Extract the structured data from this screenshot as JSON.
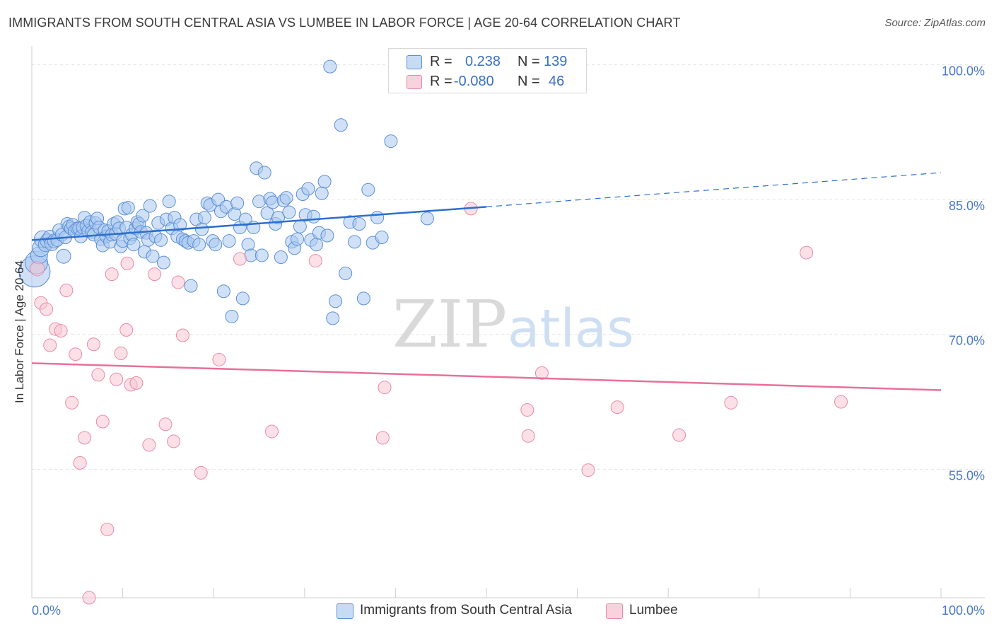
{
  "title": "IMMIGRANTS FROM SOUTH CENTRAL ASIA VS LUMBEE IN LABOR FORCE | AGE 20-64 CORRELATION CHART",
  "source": "Source: ZipAtlas.com",
  "watermark": {
    "zip": "ZIP",
    "atlas": "atlas"
  },
  "legend_top": {
    "rows": [
      {
        "r_label": "R =",
        "r_value": "0.238",
        "n_label": "N =",
        "n_value": "139",
        "color": "#a9c8f0"
      },
      {
        "r_label": "R =",
        "r_value": "-0.080",
        "n_label": "N =",
        "n_value": "46",
        "color": "#f5b8cb"
      }
    ]
  },
  "legend_bottom": {
    "items": [
      {
        "label": "Immigrants from South Central Asia",
        "color": "#a9c8f0"
      },
      {
        "label": "Lumbee",
        "color": "#f5b8cb"
      }
    ]
  },
  "chart_data": {
    "type": "scatter",
    "ylabel": "In Labor Force | Age 20-64",
    "xlim": [
      0,
      100
    ],
    "ylim": [
      40.7,
      101.7
    ],
    "x_tick_labels": [
      "0.0%",
      "100.0%"
    ],
    "y_ticks": [
      55,
      70,
      85,
      100
    ],
    "y_tick_labels": [
      "55.0%",
      "70.0%",
      "85.0%",
      "100.0%"
    ],
    "grid": true,
    "colors": {
      "blue_fill": "#a9c8f0",
      "blue_stroke": "#5b8fd6",
      "blue_line": "#2b6fcf",
      "pink_fill": "#f8c6d4",
      "pink_stroke": "#e88aa7",
      "pink_line": "#e8709a",
      "tick_text": "#4a78c9"
    },
    "series": [
      {
        "name": "Immigrants from South Central Asia",
        "trend": {
          "x0": 0,
          "y0": 80.5,
          "x1": 50,
          "y1": 84.2,
          "dash_to": 100,
          "dash_y": 88.0
        },
        "points": [
          [
            0.3,
            77.0,
            22
          ],
          [
            0.5,
            78.0,
            16
          ],
          [
            0.8,
            78.8,
            12
          ],
          [
            1.0,
            79.6,
            12
          ],
          [
            1.2,
            80.6,
            12
          ],
          [
            1.5,
            80.0,
            10
          ],
          [
            1.7,
            80.4,
            10
          ],
          [
            2.0,
            80.8,
            10
          ],
          [
            2.2,
            80.1,
            10
          ],
          [
            2.5,
            80.4,
            10
          ],
          [
            2.8,
            80.5,
            9
          ],
          [
            3.0,
            81.6,
            9
          ],
          [
            3.3,
            81.1,
            9
          ],
          [
            3.5,
            78.7,
            10
          ],
          [
            3.7,
            80.8,
            9
          ],
          [
            3.9,
            82.3,
            9
          ],
          [
            4.1,
            82.0,
            9
          ],
          [
            4.3,
            81.8,
            9
          ],
          [
            4.5,
            82.2,
            9
          ],
          [
            4.7,
            81.5,
            9
          ],
          [
            5.0,
            81.8,
            9
          ],
          [
            5.2,
            81.8,
            9
          ],
          [
            5.4,
            80.9,
            9
          ],
          [
            5.6,
            81.9,
            9
          ],
          [
            5.8,
            83.0,
            9
          ],
          [
            6.0,
            82.1,
            9
          ],
          [
            6.2,
            81.5,
            9
          ],
          [
            6.4,
            82.5,
            9
          ],
          [
            6.6,
            81.4,
            9
          ],
          [
            6.8,
            81.1,
            9
          ],
          [
            7.0,
            82.4,
            9
          ],
          [
            7.2,
            82.9,
            9
          ],
          [
            7.4,
            81.9,
            9
          ],
          [
            7.6,
            80.6,
            9
          ],
          [
            7.8,
            79.9,
            9
          ],
          [
            8.0,
            81.6,
            9
          ],
          [
            8.2,
            80.9,
            9
          ],
          [
            8.4,
            81.5,
            9
          ],
          [
            8.6,
            80.3,
            9
          ],
          [
            8.8,
            81.1,
            9
          ],
          [
            9.0,
            82.3,
            9
          ],
          [
            9.2,
            81.2,
            9
          ],
          [
            9.4,
            82.5,
            9
          ],
          [
            9.6,
            81.8,
            9
          ],
          [
            9.8,
            79.8,
            9
          ],
          [
            10.0,
            80.4,
            9
          ],
          [
            10.2,
            84.0,
            9
          ],
          [
            10.4,
            81.9,
            9
          ],
          [
            10.6,
            84.1,
            9
          ],
          [
            10.8,
            80.7,
            9
          ],
          [
            11.0,
            81.1,
            9
          ],
          [
            11.2,
            80.0,
            9
          ],
          [
            11.4,
            81.8,
            9
          ],
          [
            11.6,
            82.5,
            9
          ],
          [
            11.8,
            82.3,
            9
          ],
          [
            12.0,
            81.4,
            9
          ],
          [
            12.2,
            83.2,
            9
          ],
          [
            12.4,
            79.2,
            9
          ],
          [
            12.6,
            81.3,
            9
          ],
          [
            12.8,
            80.5,
            9
          ],
          [
            13.0,
            84.3,
            9
          ],
          [
            13.3,
            78.7,
            9
          ],
          [
            13.6,
            80.9,
            9
          ],
          [
            13.9,
            82.4,
            9
          ],
          [
            14.2,
            80.5,
            9
          ],
          [
            14.5,
            78.0,
            9
          ],
          [
            14.8,
            82.8,
            9
          ],
          [
            15.1,
            84.8,
            9
          ],
          [
            15.4,
            81.8,
            9
          ],
          [
            15.7,
            83.0,
            9
          ],
          [
            16.0,
            80.9,
            9
          ],
          [
            16.3,
            82.2,
            9
          ],
          [
            16.6,
            80.6,
            9
          ],
          [
            16.9,
            80.4,
            9
          ],
          [
            17.2,
            80.2,
            9
          ],
          [
            17.5,
            75.4,
            9
          ],
          [
            17.8,
            80.4,
            9
          ],
          [
            18.1,
            82.8,
            9
          ],
          [
            18.4,
            80.0,
            9
          ],
          [
            18.7,
            81.7,
            9
          ],
          [
            19.0,
            83.0,
            9
          ],
          [
            19.3,
            84.6,
            9
          ],
          [
            19.6,
            84.4,
            9
          ],
          [
            19.9,
            80.4,
            9
          ],
          [
            20.2,
            80.0,
            9
          ],
          [
            20.5,
            85.0,
            9
          ],
          [
            20.8,
            83.7,
            9
          ],
          [
            21.1,
            74.8,
            9
          ],
          [
            21.4,
            84.2,
            9
          ],
          [
            21.7,
            80.4,
            9
          ],
          [
            22.0,
            72.0,
            9
          ],
          [
            22.3,
            83.4,
            9
          ],
          [
            22.6,
            84.6,
            9
          ],
          [
            22.9,
            81.9,
            9
          ],
          [
            23.2,
            74.0,
            9
          ],
          [
            23.5,
            82.8,
            9
          ],
          [
            23.8,
            80.0,
            9
          ],
          [
            24.1,
            78.8,
            9
          ],
          [
            24.4,
            81.9,
            9
          ],
          [
            24.7,
            88.5,
            9
          ],
          [
            25.0,
            84.8,
            9
          ],
          [
            25.3,
            78.8,
            9
          ],
          [
            25.6,
            88.0,
            9
          ],
          [
            25.9,
            83.5,
            9
          ],
          [
            26.2,
            85.1,
            9
          ],
          [
            26.5,
            84.7,
            9
          ],
          [
            26.8,
            82.3,
            9
          ],
          [
            27.1,
            83.0,
            9
          ],
          [
            27.4,
            78.6,
            9
          ],
          [
            27.7,
            84.9,
            9
          ],
          [
            28.0,
            85.2,
            9
          ],
          [
            28.3,
            83.6,
            9
          ],
          [
            28.6,
            80.3,
            9
          ],
          [
            28.9,
            79.6,
            9
          ],
          [
            29.2,
            80.6,
            9
          ],
          [
            29.5,
            82.0,
            9
          ],
          [
            29.8,
            85.6,
            9
          ],
          [
            30.1,
            83.3,
            9
          ],
          [
            30.4,
            86.2,
            9
          ],
          [
            30.7,
            80.5,
            9
          ],
          [
            31.0,
            83.1,
            9
          ],
          [
            31.3,
            80.0,
            9
          ],
          [
            31.6,
            81.3,
            9
          ],
          [
            31.9,
            85.7,
            9
          ],
          [
            32.2,
            87.0,
            9
          ],
          [
            32.5,
            81.0,
            9
          ],
          [
            32.8,
            99.8,
            9
          ],
          [
            33.1,
            71.8,
            9
          ],
          [
            33.4,
            73.7,
            9
          ],
          [
            34.0,
            93.3,
            9
          ],
          [
            34.5,
            76.8,
            9
          ],
          [
            35.0,
            82.5,
            9
          ],
          [
            35.5,
            80.3,
            9
          ],
          [
            36.0,
            82.3,
            9
          ],
          [
            36.5,
            74.0,
            9
          ],
          [
            37.0,
            86.1,
            9
          ],
          [
            37.5,
            80.2,
            9
          ],
          [
            38.0,
            83.0,
            9
          ],
          [
            38.5,
            80.8,
            9
          ],
          [
            39.5,
            91.5,
            9
          ],
          [
            43.5,
            82.9,
            9
          ]
        ]
      },
      {
        "name": "Lumbee",
        "trend": {
          "x0": 0,
          "y0": 66.8,
          "x1": 100,
          "y1": 63.8
        },
        "points": [
          [
            0.6,
            77.3,
            10
          ],
          [
            1.0,
            73.5,
            9
          ],
          [
            1.6,
            72.8,
            9
          ],
          [
            2.0,
            68.8,
            9
          ],
          [
            2.6,
            70.6,
            9
          ],
          [
            3.2,
            70.4,
            9
          ],
          [
            3.8,
            74.9,
            9
          ],
          [
            4.4,
            62.4,
            9
          ],
          [
            4.8,
            67.8,
            9
          ],
          [
            5.3,
            55.7,
            9
          ],
          [
            5.8,
            58.5,
            9
          ],
          [
            6.3,
            40.7,
            9
          ],
          [
            6.8,
            68.9,
            9
          ],
          [
            7.3,
            65.5,
            9
          ],
          [
            7.8,
            60.3,
            9
          ],
          [
            8.3,
            48.3,
            9
          ],
          [
            8.8,
            76.7,
            9
          ],
          [
            9.3,
            65.0,
            9
          ],
          [
            9.8,
            67.9,
            9
          ],
          [
            10.4,
            70.5,
            9
          ],
          [
            10.5,
            77.9,
            9
          ],
          [
            10.9,
            64.4,
            9
          ],
          [
            11.5,
            64.6,
            9
          ],
          [
            12.9,
            57.7,
            9
          ],
          [
            13.5,
            76.7,
            9
          ],
          [
            14.7,
            60.0,
            9
          ],
          [
            15.6,
            58.1,
            9
          ],
          [
            16.1,
            75.8,
            9
          ],
          [
            16.6,
            69.9,
            9
          ],
          [
            18.6,
            54.6,
            9
          ],
          [
            20.6,
            67.2,
            9
          ],
          [
            22.9,
            78.4,
            9
          ],
          [
            26.4,
            59.2,
            9
          ],
          [
            31.2,
            78.2,
            9
          ],
          [
            38.6,
            58.5,
            9
          ],
          [
            38.8,
            64.1,
            9
          ],
          [
            48.3,
            84.0,
            9
          ],
          [
            54.5,
            61.6,
            9
          ],
          [
            54.6,
            58.7,
            9
          ],
          [
            56.1,
            65.7,
            9
          ],
          [
            61.2,
            54.9,
            9
          ],
          [
            64.4,
            61.9,
            9
          ],
          [
            71.2,
            58.8,
            9
          ],
          [
            76.9,
            62.4,
            9
          ],
          [
            85.2,
            79.1,
            9
          ],
          [
            89.0,
            62.5,
            9
          ]
        ]
      }
    ]
  }
}
